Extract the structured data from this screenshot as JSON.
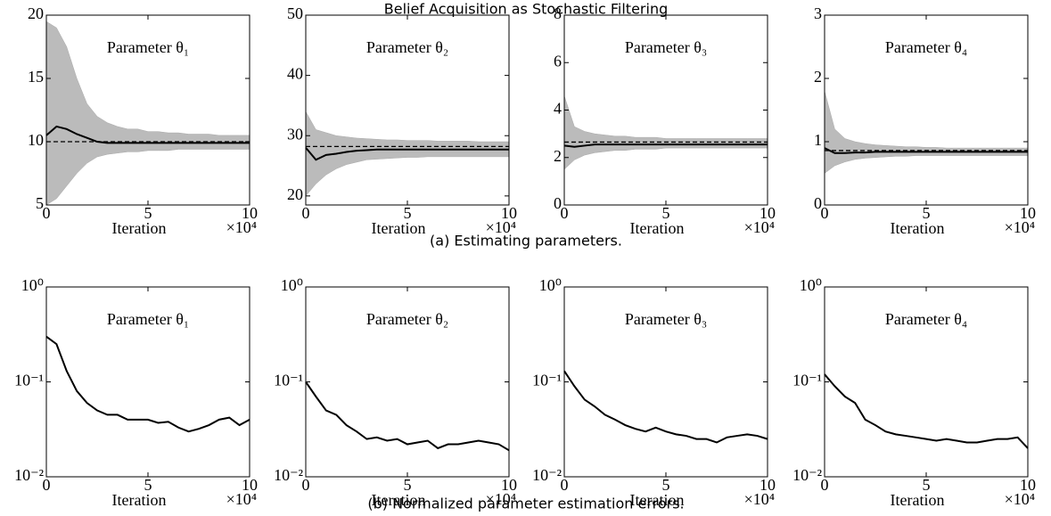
{
  "figure": {
    "title": "Belief Acquisition as Stochastic Filtering",
    "captions": [
      "(a) Estimating parameters.",
      "(b) Normalized parameter estimation errors."
    ]
  },
  "chart_data": [
    {
      "type": "line",
      "title": "Parameter θ₁",
      "xlabel": "Iteration",
      "x_multiplier": "×10⁴",
      "x": [
        0,
        0.5,
        1,
        1.5,
        2,
        2.5,
        3,
        3.5,
        4,
        4.5,
        5,
        5.5,
        6,
        6.5,
        7,
        7.5,
        8,
        8.5,
        9,
        9.5,
        10
      ],
      "xlim": [
        0,
        10
      ],
      "xticks": [
        0,
        5,
        10
      ],
      "ylim": [
        5,
        20
      ],
      "yticks": [
        5,
        10,
        15,
        20
      ],
      "band": {
        "color": "#aaaaaa",
        "upper": [
          19.5,
          19,
          17.5,
          15,
          13,
          12,
          11.5,
          11.2,
          11,
          11,
          10.8,
          10.8,
          10.7,
          10.7,
          10.6,
          10.6,
          10.6,
          10.5,
          10.5,
          10.5,
          10.5
        ],
        "lower": [
          5,
          5.5,
          6.5,
          7.5,
          8.3,
          8.8,
          9,
          9.1,
          9.2,
          9.2,
          9.3,
          9.3,
          9.3,
          9.4,
          9.4,
          9.4,
          9.4,
          9.4,
          9.4,
          9.4,
          9.4
        ]
      },
      "series": [
        {
          "color": "#000000",
          "style": "dashed",
          "values": [
            10,
            10,
            10,
            10,
            10,
            10,
            10,
            10,
            10,
            10,
            10,
            10,
            10,
            10,
            10,
            10,
            10,
            10,
            10,
            10,
            10
          ]
        },
        {
          "color": "#000000",
          "style": "solid",
          "values": [
            10.5,
            11.2,
            11,
            10.6,
            10.3,
            10,
            9.9,
            9.9,
            9.9,
            9.9,
            9.9,
            9.9,
            9.9,
            9.9,
            9.9,
            9.9,
            9.9,
            9.9,
            9.9,
            9.9,
            9.9
          ]
        }
      ]
    },
    {
      "type": "line",
      "title": "Parameter θ₂",
      "xlabel": "Iteration",
      "x_multiplier": "×10⁴",
      "x": [
        0,
        0.5,
        1,
        1.5,
        2,
        2.5,
        3,
        3.5,
        4,
        4.5,
        5,
        5.5,
        6,
        6.5,
        7,
        7.5,
        8,
        8.5,
        9,
        9.5,
        10
      ],
      "xlim": [
        0,
        10
      ],
      "xticks": [
        0,
        5,
        10
      ],
      "ylim": [
        18.5,
        50
      ],
      "yticks": [
        20,
        30,
        40,
        50
      ],
      "band": {
        "color": "#aaaaaa",
        "upper": [
          34,
          31,
          30.5,
          30,
          29.8,
          29.6,
          29.5,
          29.4,
          29.3,
          29.3,
          29.2,
          29.2,
          29.2,
          29.1,
          29.1,
          29.1,
          29.1,
          29,
          29,
          29,
          29
        ],
        "lower": [
          20,
          22,
          23.5,
          24.5,
          25.2,
          25.6,
          26,
          26.1,
          26.2,
          26.3,
          26.4,
          26.4,
          26.5,
          26.5,
          26.5,
          26.5,
          26.5,
          26.5,
          26.5,
          26.5,
          26.5
        ]
      },
      "series": [
        {
          "color": "#000000",
          "style": "dashed",
          "values": [
            28.2,
            28.2,
            28.2,
            28.2,
            28.2,
            28.2,
            28.2,
            28.2,
            28.2,
            28.2,
            28.2,
            28.2,
            28.2,
            28.2,
            28.2,
            28.2,
            28.2,
            28.2,
            28.2,
            28.2,
            28.2
          ]
        },
        {
          "color": "#000000",
          "style": "solid",
          "values": [
            28,
            26,
            26.8,
            27,
            27.3,
            27.5,
            27.6,
            27.7,
            27.7,
            27.7,
            27.7,
            27.7,
            27.7,
            27.7,
            27.7,
            27.7,
            27.7,
            27.7,
            27.7,
            27.7,
            27.7
          ]
        }
      ]
    },
    {
      "type": "line",
      "title": "Parameter θ₃",
      "xlabel": "Iteration",
      "x_multiplier": "×10⁴",
      "x": [
        0,
        0.5,
        1,
        1.5,
        2,
        2.5,
        3,
        3.5,
        4,
        4.5,
        5,
        5.5,
        6,
        6.5,
        7,
        7.5,
        8,
        8.5,
        9,
        9.5,
        10
      ],
      "xlim": [
        0,
        10
      ],
      "xticks": [
        0,
        5,
        10
      ],
      "ylim": [
        0,
        8
      ],
      "yticks": [
        0,
        2,
        4,
        6,
        8
      ],
      "band": {
        "color": "#aaaaaa",
        "upper": [
          4.6,
          3.3,
          3.1,
          3,
          2.95,
          2.9,
          2.9,
          2.85,
          2.85,
          2.85,
          2.8,
          2.8,
          2.8,
          2.8,
          2.8,
          2.8,
          2.8,
          2.8,
          2.8,
          2.8,
          2.8
        ],
        "lower": [
          1.5,
          1.9,
          2.1,
          2.2,
          2.25,
          2.3,
          2.3,
          2.35,
          2.35,
          2.35,
          2.4,
          2.4,
          2.4,
          2.4,
          2.4,
          2.4,
          2.4,
          2.4,
          2.4,
          2.4,
          2.4
        ]
      },
      "series": [
        {
          "color": "#000000",
          "style": "dashed",
          "values": [
            2.65,
            2.65,
            2.65,
            2.65,
            2.65,
            2.65,
            2.65,
            2.65,
            2.65,
            2.65,
            2.65,
            2.65,
            2.65,
            2.65,
            2.65,
            2.65,
            2.65,
            2.65,
            2.65,
            2.65,
            2.65
          ]
        },
        {
          "color": "#000000",
          "style": "solid",
          "values": [
            2.5,
            2.45,
            2.5,
            2.55,
            2.55,
            2.55,
            2.55,
            2.55,
            2.55,
            2.55,
            2.55,
            2.55,
            2.55,
            2.55,
            2.55,
            2.55,
            2.55,
            2.55,
            2.55,
            2.55,
            2.55
          ]
        }
      ]
    },
    {
      "type": "line",
      "title": "Parameter θ₄",
      "xlabel": "Iteration",
      "x_multiplier": "×10⁴",
      "x": [
        0,
        0.5,
        1,
        1.5,
        2,
        2.5,
        3,
        3.5,
        4,
        4.5,
        5,
        5.5,
        6,
        6.5,
        7,
        7.5,
        8,
        8.5,
        9,
        9.5,
        10
      ],
      "xlim": [
        0,
        10
      ],
      "xticks": [
        0,
        5,
        10
      ],
      "ylim": [
        0,
        3
      ],
      "yticks": [
        0,
        1,
        2,
        3
      ],
      "band": {
        "color": "#aaaaaa",
        "upper": [
          1.8,
          1.2,
          1.05,
          1,
          0.97,
          0.95,
          0.94,
          0.93,
          0.92,
          0.92,
          0.91,
          0.91,
          0.9,
          0.9,
          0.9,
          0.9,
          0.9,
          0.9,
          0.9,
          0.9,
          0.9
        ],
        "lower": [
          0.5,
          0.62,
          0.68,
          0.72,
          0.74,
          0.75,
          0.76,
          0.77,
          0.77,
          0.78,
          0.78,
          0.78,
          0.78,
          0.78,
          0.78,
          0.78,
          0.78,
          0.78,
          0.78,
          0.78,
          0.78
        ]
      },
      "series": [
        {
          "color": "#000000",
          "style": "dashed",
          "values": [
            0.86,
            0.86,
            0.86,
            0.86,
            0.86,
            0.86,
            0.86,
            0.86,
            0.86,
            0.86,
            0.86,
            0.86,
            0.86,
            0.86,
            0.86,
            0.86,
            0.86,
            0.86,
            0.86,
            0.86,
            0.86
          ]
        },
        {
          "color": "#000000",
          "style": "solid",
          "values": [
            0.9,
            0.82,
            0.82,
            0.83,
            0.83,
            0.84,
            0.84,
            0.84,
            0.84,
            0.84,
            0.84,
            0.84,
            0.84,
            0.84,
            0.84,
            0.84,
            0.84,
            0.84,
            0.84,
            0.84,
            0.84
          ]
        }
      ]
    },
    {
      "type": "line",
      "title": "Parameter θ₁",
      "xlabel": "Iteration",
      "x_multiplier": "×10⁴",
      "log": true,
      "x": [
        0,
        0.5,
        1,
        1.5,
        2,
        2.5,
        3,
        3.5,
        4,
        4.5,
        5,
        5.5,
        6,
        6.5,
        7,
        7.5,
        8,
        8.5,
        9,
        9.5,
        10
      ],
      "xlim": [
        0,
        10
      ],
      "xticks": [
        0,
        5,
        10
      ],
      "ylim": [
        0.01,
        1
      ],
      "yticks": [
        {
          "value": 0.01,
          "label": "10⁻²"
        },
        {
          "value": 0.1,
          "label": "10⁻¹"
        },
        {
          "value": 1,
          "label": "10⁰"
        }
      ],
      "series": [
        {
          "color": "#000000",
          "style": "solid",
          "values": [
            0.3,
            0.25,
            0.13,
            0.08,
            0.06,
            0.05,
            0.045,
            0.045,
            0.04,
            0.04,
            0.04,
            0.037,
            0.038,
            0.033,
            0.03,
            0.032,
            0.035,
            0.04,
            0.042,
            0.035,
            0.04
          ]
        }
      ]
    },
    {
      "type": "line",
      "title": "Parameter θ₂",
      "xlabel": "Iteration",
      "x_multiplier": "×10⁴",
      "log": true,
      "x": [
        0,
        0.5,
        1,
        1.5,
        2,
        2.5,
        3,
        3.5,
        4,
        4.5,
        5,
        5.5,
        6,
        6.5,
        7,
        7.5,
        8,
        8.5,
        9,
        9.5,
        10
      ],
      "xlim": [
        0,
        10
      ],
      "xticks": [
        0,
        5,
        10
      ],
      "ylim": [
        0.01,
        1
      ],
      "yticks": [
        {
          "value": 0.01,
          "label": "10⁻²"
        },
        {
          "value": 0.1,
          "label": "10⁻¹"
        },
        {
          "value": 1,
          "label": "10⁰"
        }
      ],
      "series": [
        {
          "color": "#000000",
          "style": "solid",
          "values": [
            0.1,
            0.07,
            0.05,
            0.045,
            0.035,
            0.03,
            0.025,
            0.026,
            0.024,
            0.025,
            0.022,
            0.023,
            0.024,
            0.02,
            0.022,
            0.022,
            0.023,
            0.024,
            0.023,
            0.022,
            0.019
          ]
        }
      ]
    },
    {
      "type": "line",
      "title": "Parameter θ₃",
      "xlabel": "Iteration",
      "x_multiplier": "×10⁴",
      "log": true,
      "x": [
        0,
        0.5,
        1,
        1.5,
        2,
        2.5,
        3,
        3.5,
        4,
        4.5,
        5,
        5.5,
        6,
        6.5,
        7,
        7.5,
        8,
        8.5,
        9,
        9.5,
        10
      ],
      "xlim": [
        0,
        10
      ],
      "xticks": [
        0,
        5,
        10
      ],
      "ylim": [
        0.01,
        1
      ],
      "yticks": [
        {
          "value": 0.01,
          "label": "10⁻²"
        },
        {
          "value": 0.1,
          "label": "10⁻¹"
        },
        {
          "value": 1,
          "label": "10⁰"
        }
      ],
      "series": [
        {
          "color": "#000000",
          "style": "solid",
          "values": [
            0.13,
            0.09,
            0.065,
            0.055,
            0.045,
            0.04,
            0.035,
            0.032,
            0.03,
            0.033,
            0.03,
            0.028,
            0.027,
            0.025,
            0.025,
            0.023,
            0.026,
            0.027,
            0.028,
            0.027,
            0.025
          ]
        }
      ]
    },
    {
      "type": "line",
      "title": "Parameter θ₄",
      "xlabel": "Iteration",
      "x_multiplier": "×10⁴",
      "log": true,
      "x": [
        0,
        0.5,
        1,
        1.5,
        2,
        2.5,
        3,
        3.5,
        4,
        4.5,
        5,
        5.5,
        6,
        6.5,
        7,
        7.5,
        8,
        8.5,
        9,
        9.5,
        10
      ],
      "xlim": [
        0,
        10
      ],
      "xticks": [
        0,
        5,
        10
      ],
      "ylim": [
        0.01,
        1
      ],
      "yticks": [
        {
          "value": 0.01,
          "label": "10⁻²"
        },
        {
          "value": 0.1,
          "label": "10⁻¹"
        },
        {
          "value": 1,
          "label": "10⁰"
        }
      ],
      "series": [
        {
          "color": "#000000",
          "style": "solid",
          "values": [
            0.12,
            0.09,
            0.07,
            0.06,
            0.04,
            0.035,
            0.03,
            0.028,
            0.027,
            0.026,
            0.025,
            0.024,
            0.025,
            0.024,
            0.023,
            0.023,
            0.024,
            0.025,
            0.025,
            0.026,
            0.02
          ]
        }
      ]
    }
  ]
}
